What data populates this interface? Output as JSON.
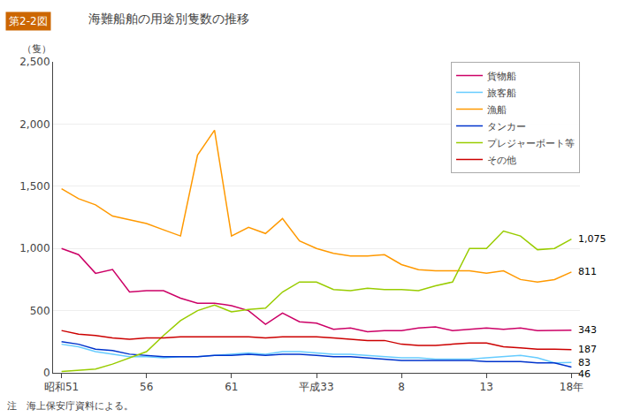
{
  "chart_data": {
    "type": "line",
    "title": "海難船舶の用途別隻数の推移",
    "ylabel": "（隻）",
    "annotations": [
      "第2-2図",
      "注　海上保安庁資料による。"
    ],
    "categories": [
      "昭和51",
      null,
      null,
      null,
      null,
      "56",
      null,
      null,
      null,
      null,
      "61",
      null,
      null,
      null,
      null,
      "平成33",
      null,
      null,
      null,
      null,
      "8",
      null,
      null,
      null,
      null,
      "13",
      null,
      null,
      null,
      null,
      "18年"
    ],
    "series": [
      {
        "name": "貨物船",
        "color": "#cc0066",
        "values": [
          1000,
          950,
          800,
          830,
          650,
          660,
          660,
          600,
          560,
          560,
          540,
          500,
          390,
          480,
          410,
          400,
          350,
          360,
          330,
          340,
          340,
          360,
          370,
          340,
          350,
          360,
          350,
          360,
          340,
          340,
          343
        ],
        "value_labels": [
          null,
          null,
          null,
          null,
          null,
          null,
          null,
          null,
          null,
          null,
          null,
          null,
          null,
          null,
          null,
          null,
          null,
          null,
          null,
          null,
          null,
          null,
          null,
          null,
          null,
          null,
          null,
          null,
          null,
          null,
          "343"
        ]
      },
      {
        "name": "旅客船",
        "color": "#66ccff",
        "values": [
          230,
          210,
          170,
          150,
          130,
          130,
          120,
          130,
          130,
          140,
          150,
          160,
          150,
          170,
          170,
          160,
          150,
          150,
          140,
          130,
          120,
          120,
          110,
          110,
          110,
          120,
          130,
          140,
          120,
          80,
          83
        ],
        "value_labels": [
          null,
          null,
          null,
          null,
          null,
          null,
          null,
          null,
          null,
          null,
          null,
          null,
          null,
          null,
          null,
          null,
          null,
          null,
          null,
          null,
          null,
          null,
          null,
          null,
          null,
          null,
          null,
          null,
          null,
          null,
          "83"
        ]
      },
      {
        "name": "漁船",
        "color": "#ff9900",
        "values": [
          1480,
          1400,
          1350,
          1260,
          1230,
          1200,
          1150,
          1100,
          1750,
          1950,
          1100,
          1170,
          1120,
          1240,
          1060,
          1000,
          960,
          940,
          940,
          950,
          870,
          830,
          820,
          820,
          820,
          800,
          820,
          750,
          730,
          750,
          811
        ],
        "value_labels": [
          null,
          null,
          null,
          null,
          null,
          null,
          null,
          null,
          null,
          null,
          null,
          null,
          null,
          null,
          null,
          null,
          null,
          null,
          null,
          null,
          null,
          null,
          null,
          null,
          null,
          null,
          null,
          null,
          null,
          null,
          "811"
        ]
      },
      {
        "name": "タンカー",
        "color": "#0033cc",
        "values": [
          250,
          230,
          190,
          180,
          150,
          140,
          130,
          130,
          130,
          140,
          140,
          150,
          140,
          150,
          150,
          140,
          130,
          130,
          120,
          110,
          100,
          100,
          100,
          100,
          100,
          90,
          90,
          90,
          80,
          80,
          46
        ],
        "value_labels": [
          null,
          null,
          null,
          null,
          null,
          null,
          null,
          null,
          null,
          null,
          null,
          null,
          null,
          null,
          null,
          null,
          null,
          null,
          null,
          null,
          null,
          null,
          null,
          null,
          null,
          null,
          null,
          null,
          null,
          null,
          "46"
        ]
      },
      {
        "name": "プレジャーボート等",
        "color": "#99cc00",
        "values": [
          10,
          20,
          30,
          70,
          120,
          170,
          300,
          420,
          500,
          545,
          490,
          510,
          520,
          650,
          730,
          730,
          670,
          660,
          680,
          670,
          670,
          660,
          700,
          730,
          1000,
          1000,
          1140,
          1100,
          990,
          1000,
          1075
        ],
        "value_labels": [
          null,
          null,
          null,
          null,
          null,
          null,
          null,
          null,
          null,
          null,
          null,
          null,
          null,
          null,
          null,
          null,
          null,
          null,
          null,
          null,
          null,
          null,
          null,
          null,
          null,
          null,
          null,
          null,
          null,
          null,
          "1,075"
        ]
      },
      {
        "name": "その他",
        "color": "#cc0000",
        "values": [
          340,
          310,
          300,
          280,
          270,
          280,
          280,
          290,
          290,
          290,
          290,
          290,
          280,
          290,
          290,
          290,
          280,
          270,
          260,
          260,
          230,
          220,
          220,
          230,
          240,
          240,
          210,
          200,
          190,
          190,
          187
        ],
        "value_labels": [
          null,
          null,
          null,
          null,
          null,
          null,
          null,
          null,
          null,
          null,
          null,
          null,
          null,
          null,
          null,
          null,
          null,
          null,
          null,
          null,
          null,
          null,
          null,
          null,
          null,
          null,
          null,
          null,
          null,
          null,
          "187"
        ]
      }
    ],
    "ylim": [
      0,
      2500
    ],
    "yticks": [
      0,
      500,
      {
        "value": 1000,
        "label": "1,000"
      },
      {
        "value": 1500,
        "label": "1,500"
      },
      {
        "value": 2000,
        "label": "2,000"
      },
      {
        "value": 2500,
        "label": "2,500"
      }
    ],
    "grid": true,
    "legend": "upper right"
  }
}
